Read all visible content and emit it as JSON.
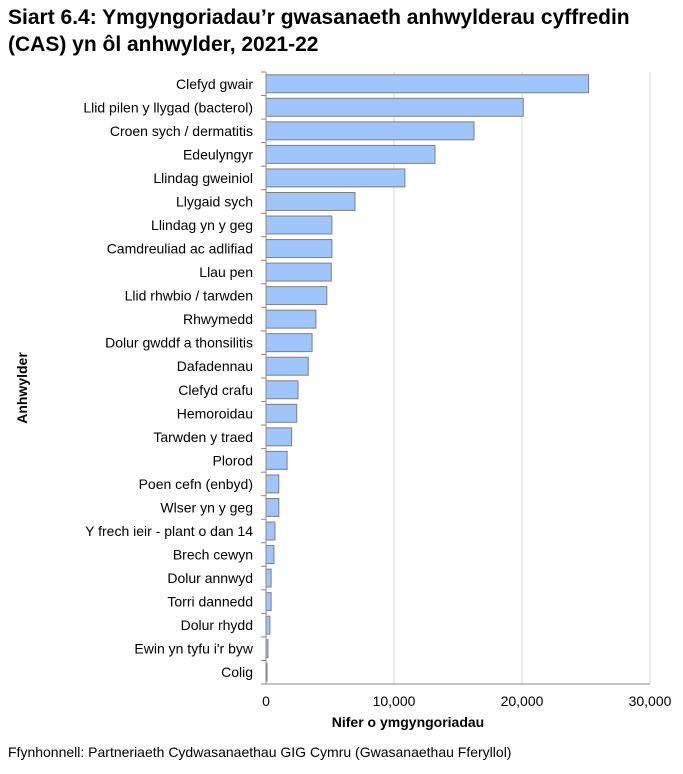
{
  "chart_data": {
    "type": "bar",
    "orientation": "horizontal",
    "title": "Siart 6.4: Ymgyngoriadau’r gwasanaeth anhwylderau cyffredin (CAS) yn ôl anhwylder, 2021-22",
    "xlabel": "Nifer o ymgyngoriadau",
    "ylabel": "Anhwylder",
    "xlim": [
      0,
      30000
    ],
    "xticks": [
      "0",
      "10,000",
      "20,000",
      "30,000"
    ],
    "grid": true,
    "bar_color": "#9fc5fb",
    "categories": [
      "Clefyd gwair",
      "Llid pilen y llygad (bacterol)",
      "Croen sych / dermatitis",
      "Edeulyngyr",
      "Llindag gweiniol",
      "Llygaid sych",
      "Llindag yn y geg",
      "Camdreuliad ac adlifiad",
      "Llau pen",
      "Llid rhwbio / tarwden",
      "Rhwymedd",
      "Dolur gwddf a thonsilitis",
      "Dafadennau",
      "Clefyd crafu",
      "Hemoroidau",
      "Tarwden y traed",
      "Plorod",
      "Poen cefn (enbyd)",
      "Wlser yn y geg",
      "Y frech ieir - plant o dan 14",
      "Brech cewyn",
      "Dolur annwyd",
      "Torri dannedd",
      "Dolur rhydd",
      "Ewin yn tyfu i'r byw",
      "Colig"
    ],
    "values": [
      25200,
      20100,
      16250,
      13200,
      10850,
      6950,
      5150,
      5150,
      5100,
      4750,
      3900,
      3600,
      3300,
      2500,
      2400,
      2000,
      1650,
      1000,
      1000,
      700,
      620,
      400,
      400,
      300,
      150,
      80
    ]
  },
  "source": "Ffynhonnell: Partneriaeth Cydwasanaethau GIG Cymru (Gwasanaethau Fferyllol)"
}
